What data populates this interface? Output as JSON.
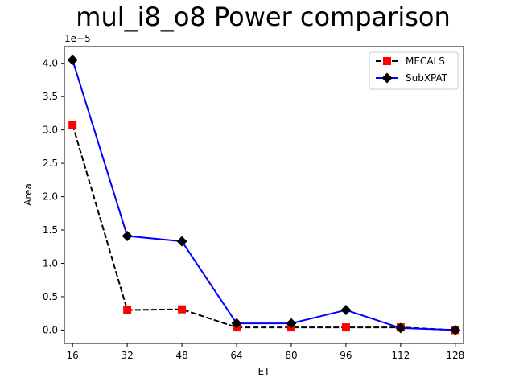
{
  "chart_data": {
    "type": "line",
    "title": "mul_i8_o8 Power comparison",
    "xlabel": "ET",
    "ylabel": "Area",
    "y_offset_text": "1e−5",
    "categories": [
      "16",
      "32",
      "48",
      "64",
      "80",
      "96",
      "112",
      "128"
    ],
    "x": [
      16,
      32,
      48,
      64,
      80,
      96,
      112,
      128
    ],
    "y_ticks": [
      "0.0",
      "0.5",
      "1.0",
      "1.5",
      "2.0",
      "2.5",
      "3.0",
      "3.5",
      "4.0"
    ],
    "ylim": [
      -2e-06,
      4.25e-05
    ],
    "legend_position": "top-right",
    "series": [
      {
        "name": "MECALS",
        "color": "#000000",
        "marker_color": "#ff0000",
        "marker": "square",
        "line_style": "dashed",
        "values": [
          3.08e-05,
          3e-06,
          3.1e-06,
          4e-07,
          4e-07,
          4e-07,
          4e-07,
          0.0
        ]
      },
      {
        "name": "SubXPAT",
        "color": "#0000ff",
        "marker_color": "#000000",
        "marker": "diamond",
        "line_style": "solid",
        "values": [
          4.05e-05,
          1.41e-05,
          1.33e-05,
          1e-06,
          1e-06,
          3e-06,
          3e-07,
          0.0
        ]
      }
    ]
  }
}
